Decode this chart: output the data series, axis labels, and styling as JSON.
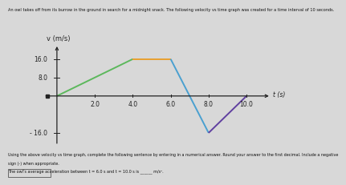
{
  "title": "An owl takes off from its burrow in the ground in search for a midnight snack. The following velocity vs time graph was created for a time interval of 10 seconds.",
  "ylabel": "v (m/s)",
  "xlabel": "t (s)",
  "segments": [
    {
      "t": [
        0,
        4
      ],
      "v": [
        0,
        16
      ],
      "color": "#5cb85c",
      "lw": 1.4
    },
    {
      "t": [
        4,
        6
      ],
      "v": [
        16,
        16
      ],
      "color": "#e8a030",
      "lw": 1.4
    },
    {
      "t": [
        6,
        8
      ],
      "v": [
        16,
        -16
      ],
      "color": "#4aa0d0",
      "lw": 1.4
    },
    {
      "t": [
        8,
        10
      ],
      "v": [
        -16,
        0
      ],
      "color": "#6040a0",
      "lw": 1.4
    }
  ],
  "xlim": [
    -0.8,
    11.5
  ],
  "ylim": [
    -22,
    23
  ],
  "xticks": [
    2.0,
    4.0,
    6.0,
    8.0,
    10.0
  ],
  "yticks": [
    8.0,
    16.0,
    -16.0
  ],
  "ytick_labels": [
    "8.0",
    "16.0",
    "- 16.0"
  ],
  "bg_color": "#d8d8d8",
  "axes_color": "#222222",
  "footnote_line1": "Using the above velocity vs time graph, complete the following sentence by entering in a numerical answer. Round your answer to the first decimal. Include a negative",
  "footnote_line2": "sign (-) when appropriate.",
  "footnote_line3": "The owl’s average acceleration between t = 6.0 s and t = 10.0 s is ______ m/s²."
}
